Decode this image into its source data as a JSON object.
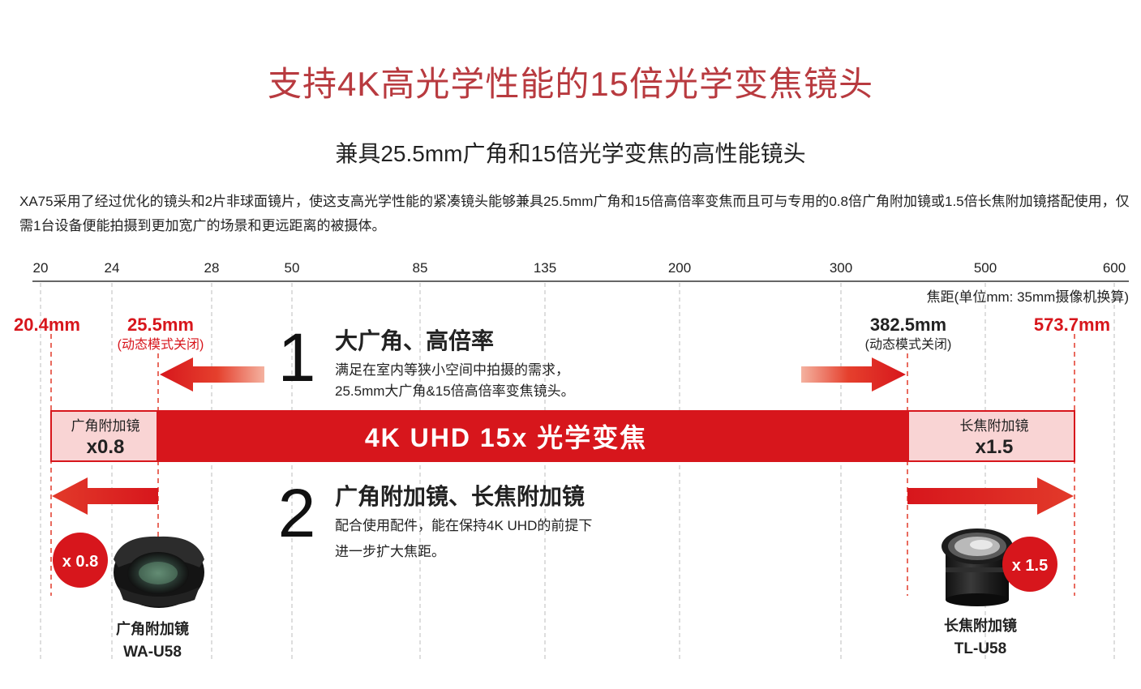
{
  "header": {
    "title": "支持4K高光学性能的15倍光学变焦镜头",
    "subtitle": "兼具25.5mm广角和15倍光学变焦的高性能镜头",
    "intro": "XA75采用了经过优化的镜头和2片非球面镜片，使这支高光学性能的紧凑镜头能够兼具25.5mm广角和15倍高倍率变焦而且可与专用的0.8倍广角附加镜或1.5倍长焦附加镜搭配使用，仅需1台设备便能拍摄到更加宽广的场景和更远距离的被摄体。"
  },
  "diagram": {
    "scale_ticks": [
      "20",
      "24",
      "28",
      "50",
      "85",
      "135",
      "200",
      "300",
      "500",
      "600"
    ],
    "scale_caption": "焦距(单位mm: 35mm摄像机换算)",
    "markers": {
      "wide_min": "20.4mm",
      "wide_native": "25.5mm",
      "wide_native_note": "(动态模式关闭)",
      "tele_native": "382.5mm",
      "tele_native_note": "(动态模式关闭)",
      "tele_max": "573.7mm"
    },
    "point1": {
      "number": "1",
      "heading": "大广角、高倍率",
      "line1": "满足在室内等狭小空间中拍摄的需求，",
      "line2": "25.5mm大广角&15倍高倍率变焦镜头。"
    },
    "main_bar": "4K UHD 15x 光学变焦",
    "wide_box": {
      "label": "广角附加镜",
      "value": "x0.8"
    },
    "tele_box": {
      "label": "长焦附加镜",
      "value": "x1.5"
    },
    "point2": {
      "number": "2",
      "heading": "广角附加镜、长焦附加镜",
      "line1": "配合使用配件，能在保持4K UHD的前提下",
      "line2": "进一步扩大焦距。"
    },
    "wide_badge": "x 0.8",
    "tele_badge": "x 1.5",
    "wide_product": {
      "name": "广角附加镜",
      "model": "WA-U58"
    },
    "tele_product": {
      "name": "长焦附加镜",
      "model": "TL-U58"
    },
    "colors": {
      "red": "#d7161c",
      "title_red": "#b83a3f",
      "pink": "#f9d4d4"
    }
  }
}
